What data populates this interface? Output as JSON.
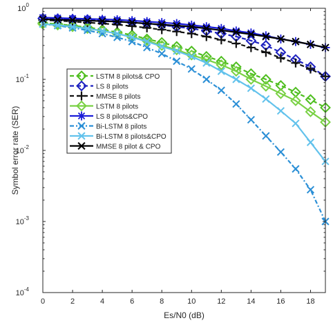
{
  "chart_data": {
    "type": "line",
    "xlabel": "Es/N0 (dB)",
    "ylabel": "Symbol error rate (SER)",
    "xlim": [
      0,
      19
    ],
    "ylim": [
      0.0001,
      1
    ],
    "yscale": "log",
    "grid": false,
    "legend_position": "inside-left",
    "x_ticks": [
      0,
      2,
      4,
      6,
      8,
      10,
      12,
      14,
      16,
      18
    ],
    "y_ticks": [
      {
        "value": 1,
        "base": "10",
        "exp": "0"
      },
      {
        "value": 0.1,
        "base": "10",
        "exp": "-1"
      },
      {
        "value": 0.01,
        "base": "10",
        "exp": "-2"
      },
      {
        "value": 0.001,
        "base": "10",
        "exp": "-3"
      },
      {
        "value": 0.0001,
        "base": "10",
        "exp": "-4"
      }
    ],
    "x": [
      0,
      1,
      2,
      3,
      4,
      5,
      6,
      7,
      8,
      9,
      10,
      11,
      12,
      13,
      14,
      15,
      16,
      17,
      18,
      19
    ],
    "series": [
      {
        "name": "LSTM 8 pilots& CPO",
        "color": "#4fbe20",
        "dash": "6,4",
        "marker": "diamond",
        "values": [
          0.62,
          0.6,
          0.57,
          0.54,
          0.5,
          0.46,
          0.42,
          0.37,
          0.33,
          0.29,
          0.25,
          0.21,
          0.18,
          0.15,
          0.12,
          0.1,
          0.082,
          0.066,
          0.052,
          0.04
        ]
      },
      {
        "name": "LS 8 pilots",
        "color": "#1e22c0",
        "dash": "6,4",
        "marker": "diamond",
        "values": [
          0.72,
          0.71,
          0.7,
          0.69,
          0.67,
          0.65,
          0.63,
          0.61,
          0.58,
          0.55,
          0.52,
          0.48,
          0.44,
          0.4,
          0.35,
          0.3,
          0.24,
          0.19,
          0.15,
          0.11
        ]
      },
      {
        "name": "MMSE 8 pilots",
        "color": "#111111",
        "dash": "6,4",
        "marker": "plus",
        "values": [
          0.68,
          0.67,
          0.65,
          0.63,
          0.61,
          0.59,
          0.56,
          0.53,
          0.5,
          0.47,
          0.44,
          0.4,
          0.36,
          0.32,
          0.28,
          0.24,
          0.2,
          0.17,
          0.14,
          0.11
        ]
      },
      {
        "name": "LSTM 8 pilots",
        "color": "#79d144",
        "dash": "",
        "marker": "diamond",
        "values": [
          0.6,
          0.58,
          0.55,
          0.52,
          0.48,
          0.44,
          0.39,
          0.35,
          0.3,
          0.26,
          0.22,
          0.19,
          0.16,
          0.13,
          0.1,
          0.08,
          0.063,
          0.05,
          0.035,
          0.025
        ]
      },
      {
        "name": "LS 8 pilots&CPO",
        "color": "#1a1cd8",
        "dash": "",
        "marker": "asterisk",
        "values": [
          0.74,
          0.73,
          0.72,
          0.71,
          0.7,
          0.69,
          0.67,
          0.65,
          0.63,
          0.61,
          0.58,
          0.55,
          0.52,
          0.48,
          0.45,
          0.41,
          0.37,
          0.34,
          0.31,
          0.28
        ]
      },
      {
        "name": "Bi-LSTM 8 pilots",
        "color": "#2b8fd6",
        "dash": "6,3,2,3",
        "marker": "x",
        "values": [
          0.6,
          0.57,
          0.53,
          0.49,
          0.44,
          0.39,
          0.34,
          0.28,
          0.23,
          0.18,
          0.14,
          0.1,
          0.07,
          0.045,
          0.027,
          0.016,
          0.0095,
          0.0055,
          0.0028,
          0.001
        ]
      },
      {
        "name": "Bi-LSTM 8 pilots&CPO",
        "color": "#62c2ec",
        "dash": "",
        "marker": "x",
        "values": [
          0.6,
          0.58,
          0.55,
          0.52,
          0.48,
          0.44,
          0.39,
          0.34,
          0.29,
          0.25,
          0.21,
          0.17,
          0.13,
          0.1,
          0.075,
          0.053,
          0.036,
          0.024,
          0.013,
          0.007
        ]
      },
      {
        "name": "MMSE 8 pilot & CPO",
        "color": "#000000",
        "dash": "",
        "marker": "x",
        "values": [
          0.7,
          0.69,
          0.68,
          0.67,
          0.66,
          0.65,
          0.63,
          0.61,
          0.59,
          0.57,
          0.55,
          0.52,
          0.49,
          0.46,
          0.43,
          0.4,
          0.37,
          0.34,
          0.31,
          0.28
        ]
      }
    ]
  }
}
